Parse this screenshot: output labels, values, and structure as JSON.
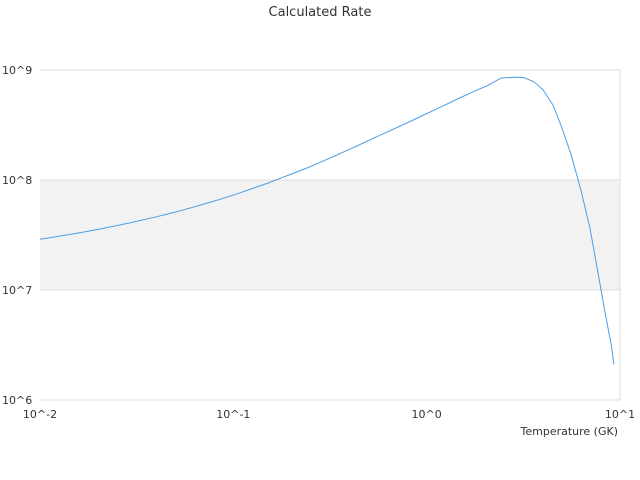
{
  "chart_data": {
    "type": "line",
    "title": "Calculated Rate",
    "xlabel": "Temperature (GK)",
    "ylabel": "",
    "x_scale": "log",
    "y_scale": "log",
    "xlim": [
      0.01,
      10
    ],
    "ylim": [
      1000000,
      1000000000
    ],
    "x_ticks": [
      {
        "value": 0.01,
        "label": "10^-2"
      },
      {
        "value": 0.1,
        "label": "10^-1"
      },
      {
        "value": 1,
        "label": "10^0"
      },
      {
        "value": 10,
        "label": "10^1"
      }
    ],
    "y_ticks": [
      {
        "value": 1000000,
        "label": "10^6"
      },
      {
        "value": 10000000,
        "label": "10^7"
      },
      {
        "value": 100000000,
        "label": "10^8"
      },
      {
        "value": 1000000000,
        "label": "10^9"
      }
    ],
    "grid": true,
    "band_color": "#f2f2f2",
    "grid_color": "#dddddd",
    "legend": "none",
    "series": [
      {
        "color": "#4a9ee6",
        "x": [
          0.01,
          0.0108,
          0.0127,
          0.015,
          0.0177,
          0.0207,
          0.0244,
          0.0288,
          0.0339,
          0.04,
          0.0471,
          0.0555,
          0.0654,
          0.0771,
          0.0909,
          0.107,
          0.126,
          0.149,
          0.175,
          0.207,
          0.244,
          0.287,
          0.339,
          0.399,
          0.47,
          0.554,
          0.653,
          0.77,
          0.907,
          1.07,
          1.26,
          1.48,
          1.75,
          2.06,
          2.43,
          2.86,
          3.2,
          3.6,
          4.0,
          4.5,
          5.0,
          5.6,
          6.3,
          7.0,
          7.9,
          8.4,
          9.0,
          9.3
        ],
        "y": [
          29000000,
          29500000,
          31000000,
          32500000,
          34200000,
          36100000,
          38200000,
          40600000,
          43300000,
          46300000,
          49700000,
          53600000,
          58100000,
          63200000,
          69100000,
          75900000,
          83800000,
          93000000,
          103700000,
          116000000,
          130000000,
          147000000,
          167000000,
          190000000,
          217000000,
          248000000,
          283000000,
          323000000,
          370000000,
          425000000,
          487000000,
          557000000,
          636000000,
          720000000,
          845000000,
          860000000,
          850000000,
          780000000,
          660000000,
          480000000,
          300000000,
          168000000,
          79000000,
          36000000,
          11000000,
          6000000,
          3200000,
          2100000
        ]
      }
    ]
  }
}
